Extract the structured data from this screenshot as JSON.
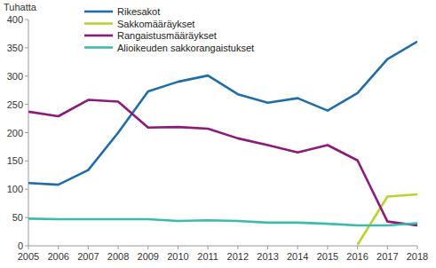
{
  "chart_data": {
    "type": "line",
    "y_label": "Tuhatta",
    "x": [
      2005,
      2006,
      2007,
      2008,
      2009,
      2010,
      2011,
      2012,
      2013,
      2014,
      2015,
      2016,
      2017,
      2018
    ],
    "xlim": [
      2005,
      2018
    ],
    "xticks": [
      2005,
      2006,
      2007,
      2008,
      2009,
      2010,
      2011,
      2012,
      2013,
      2014,
      2015,
      2016,
      2017,
      2018
    ],
    "ylim": [
      0,
      400
    ],
    "yticks": [
      0,
      50,
      100,
      150,
      200,
      250,
      300,
      350,
      400
    ],
    "grid": false,
    "legend": "top-left",
    "series": [
      {
        "name": "Rikesakot",
        "color": "#1f6ea8",
        "values": [
          111,
          108,
          134,
          200,
          273,
          290,
          301,
          268,
          253,
          261,
          239,
          270,
          330,
          361
        ]
      },
      {
        "name": "Sakkomääräykset",
        "color": "#b8d432",
        "values": [
          null,
          null,
          null,
          null,
          null,
          null,
          null,
          null,
          null,
          null,
          null,
          2,
          87,
          91
        ]
      },
      {
        "name": "Rangaistusmääräykset",
        "color": "#8c1a7c",
        "values": [
          237,
          229,
          258,
          255,
          209,
          210,
          207,
          190,
          178,
          165,
          178,
          151,
          43,
          36
        ]
      },
      {
        "name": "Alioikeuden sakkorangaistukset",
        "color": "#3dbab0",
        "values": [
          48,
          47,
          47,
          47,
          47,
          44,
          45,
          44,
          41,
          41,
          39,
          36,
          36,
          40
        ]
      }
    ]
  }
}
